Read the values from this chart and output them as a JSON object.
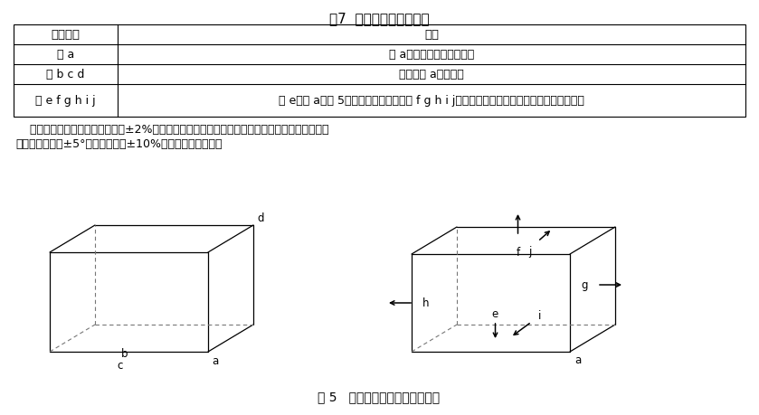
{
  "title": "表7  包装箱跌落顺序示例",
  "table_headers": [
    "跌落顺序",
    "描述"
  ],
  "table_rows": [
    [
      "角 a",
      "角 a跌落被认为是最薄弱的"
    ],
    [
      "边 b c d",
      "连接到角 a的三条边"
    ],
    [
      "面 e f g h i j",
      "面 e是角 a在图 5所示位置时的底面，面 f g h i j则依次是上面、右面、左面、前面、后面。"
    ]
  ],
  "paragraph1": "    高度的公差应在规定跌落高度的±2%以内。包装箱边或角跌落时，跌落位置所在的平面和水平面",
  "paragraph2": "的夹角不得超过±5°或规定角度的±10%（以较大者为准）。",
  "fig_caption": "图 5   运输包装箱跌落顺序示意图",
  "bg_color": "#ffffff",
  "text_color": "#000000"
}
